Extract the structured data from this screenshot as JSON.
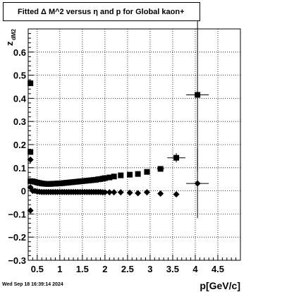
{
  "window": {
    "timestamp": "Wed Sep 18 16:39:14 2024"
  },
  "chart_data": {
    "type": "scatter",
    "title": "Fitted Δ M^2 versus η and p for Global kaon+",
    "xlabel": "p[GeV/c]",
    "ylabel": "z",
    "ylabel_sub": "dM2",
    "xlim": [
      0.3,
      5.0
    ],
    "ylim": [
      -0.3,
      0.7
    ],
    "xticks": [
      0.5,
      1,
      1.5,
      2,
      2.5,
      3,
      3.5,
      4,
      4.5
    ],
    "xtick_labels": [
      "0.5",
      "1",
      "1.5",
      "2",
      "2.5",
      "3",
      "3.5",
      "4",
      "4.5"
    ],
    "yticks": [
      -0.3,
      -0.2,
      -0.1,
      0,
      0.1,
      0.2,
      0.3,
      0.4,
      0.5,
      0.6
    ],
    "ytick_labels": [
      "−0.3",
      "−0.2",
      "−0.1",
      "0",
      "0.1",
      "0.2",
      "0.3",
      "0.4",
      "0.5",
      "0.6"
    ],
    "grid": true,
    "series": [
      {
        "marker": "square",
        "x": [
          0.35,
          0.35,
          0.35,
          0.4,
          0.45,
          0.5,
          0.55,
          0.6,
          0.65,
          0.7,
          0.75,
          0.8,
          0.85,
          0.9,
          0.95,
          1.0,
          1.05,
          1.1,
          1.15,
          1.2,
          1.25,
          1.3,
          1.35,
          1.4,
          1.45,
          1.5,
          1.55,
          1.6,
          1.65,
          1.7,
          1.75,
          1.8,
          1.85,
          1.9,
          1.95,
          2.0,
          2.1,
          2.2,
          2.35,
          2.55,
          2.73,
          2.93,
          3.23,
          3.58,
          4.05
        ],
        "y": [
          0.465,
          0.168,
          0.042,
          0.041,
          0.039,
          0.036,
          0.034,
          0.032,
          0.031,
          0.03,
          0.03,
          0.03,
          0.031,
          0.031,
          0.032,
          0.032,
          0.033,
          0.034,
          0.035,
          0.036,
          0.037,
          0.038,
          0.039,
          0.04,
          0.041,
          0.042,
          0.043,
          0.044,
          0.045,
          0.046,
          0.047,
          0.048,
          0.05,
          0.051,
          0.053,
          0.055,
          0.058,
          0.062,
          0.067,
          0.07,
          0.073,
          0.082,
          0.095,
          0.143,
          0.415
        ],
        "xerr": [
          0,
          0,
          0,
          0,
          0,
          0,
          0,
          0,
          0,
          0,
          0,
          0,
          0,
          0,
          0,
          0,
          0,
          0,
          0,
          0,
          0,
          0,
          0,
          0,
          0,
          0,
          0,
          0,
          0,
          0,
          0,
          0,
          0,
          0,
          0,
          0,
          0,
          0,
          0,
          0,
          0,
          0,
          0.08,
          0.2,
          0.25
        ],
        "yerr": [
          0,
          0,
          0,
          0,
          0,
          0,
          0,
          0,
          0,
          0,
          0,
          0,
          0,
          0,
          0,
          0,
          0,
          0,
          0,
          0,
          0,
          0,
          0,
          0,
          0,
          0,
          0,
          0,
          0,
          0,
          0,
          0,
          0,
          0,
          0,
          0,
          0,
          0,
          0,
          0,
          0,
          0,
          0.01,
          0.02,
          0.33
        ]
      },
      {
        "marker": "diamond",
        "x": [
          0.35,
          0.35,
          0.35,
          0.4,
          0.45,
          0.5,
          0.55,
          0.6,
          0.65,
          0.7,
          0.75,
          0.8,
          0.85,
          0.9,
          0.95,
          1.0,
          1.05,
          1.1,
          1.15,
          1.2,
          1.25,
          1.3,
          1.35,
          1.4,
          1.45,
          1.5,
          1.55,
          1.6,
          1.65,
          1.7,
          1.75,
          1.8,
          1.85,
          1.9,
          1.95,
          2.0,
          2.1,
          2.2,
          2.35,
          2.55,
          2.73,
          2.93,
          3.23,
          3.58,
          4.05
        ],
        "y": [
          0.135,
          0.015,
          -0.085,
          0.0,
          0.0,
          -0.003,
          -0.004,
          -0.005,
          -0.005,
          -0.005,
          -0.005,
          -0.005,
          -0.005,
          -0.005,
          -0.005,
          -0.005,
          -0.005,
          -0.005,
          -0.005,
          -0.005,
          -0.005,
          -0.005,
          -0.005,
          -0.005,
          -0.005,
          -0.005,
          -0.005,
          -0.005,
          -0.005,
          -0.005,
          -0.005,
          -0.005,
          -0.005,
          -0.005,
          -0.006,
          -0.006,
          -0.006,
          -0.006,
          -0.006,
          -0.008,
          -0.01,
          -0.006,
          -0.012,
          -0.015,
          0.032
        ],
        "xerr": [
          0,
          0,
          0,
          0,
          0,
          0,
          0,
          0,
          0,
          0,
          0,
          0,
          0,
          0,
          0,
          0,
          0,
          0,
          0,
          0,
          0,
          0,
          0,
          0,
          0,
          0,
          0,
          0,
          0,
          0,
          0,
          0,
          0,
          0,
          0,
          0,
          0,
          0,
          0,
          0,
          0,
          0,
          0,
          0,
          0.25
        ],
        "yerr": [
          0,
          0,
          0,
          0,
          0,
          0,
          0,
          0,
          0,
          0,
          0,
          0,
          0,
          0,
          0,
          0,
          0,
          0,
          0,
          0,
          0,
          0,
          0,
          0,
          0,
          0,
          0,
          0,
          0,
          0,
          0,
          0,
          0,
          0,
          0,
          0,
          0,
          0,
          0,
          0,
          0,
          0,
          0,
          0,
          0.15
        ]
      }
    ]
  }
}
